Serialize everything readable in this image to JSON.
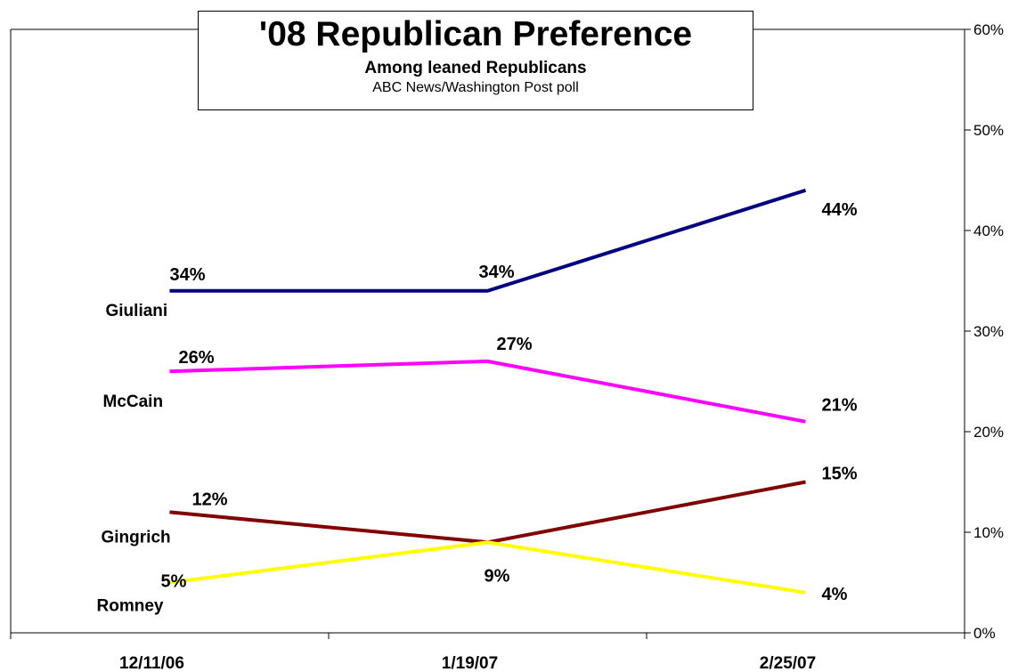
{
  "chart_data": {
    "type": "line",
    "title": "'08 Republican Preference",
    "subtitle": "Among leaned Republicans",
    "source": "ABC News/Washington Post poll",
    "categories": [
      "12/11/06",
      "1/19/07",
      "2/25/07"
    ],
    "y_axis": {
      "position": "right",
      "min": 0,
      "max": 60,
      "step": 10,
      "tick_labels": [
        "0%",
        "10%",
        "20%",
        "30%",
        "40%",
        "50%",
        "60%"
      ]
    },
    "grid": false,
    "legend": "none",
    "series": [
      {
        "name": "Giuliani",
        "color": "#000080",
        "values": [
          34,
          34,
          44
        ],
        "labels": [
          "34%",
          "34%",
          "44%"
        ]
      },
      {
        "name": "McCain",
        "color": "#ff00ff",
        "values": [
          26,
          27,
          21
        ],
        "labels": [
          "26%",
          "27%",
          "21%"
        ]
      },
      {
        "name": "Gingrich",
        "color": "#800000",
        "values": [
          12,
          9,
          15
        ],
        "labels": [
          "12%",
          "9%",
          "15%"
        ]
      },
      {
        "name": "Romney",
        "color": "#ffff00",
        "values": [
          5,
          9,
          4
        ],
        "labels": [
          "5%",
          "",
          "4%"
        ]
      }
    ]
  }
}
